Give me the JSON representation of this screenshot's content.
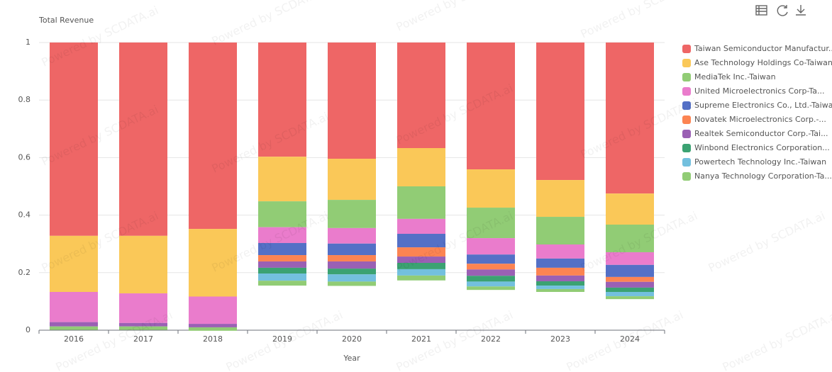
{
  "chart_data": {
    "type": "stacked_bar",
    "y_axis_label": "Total Revenue",
    "x_axis_label": "Year",
    "watermark": "Powered by SCDATA.ai",
    "categories": [
      "2016",
      "2017",
      "2018",
      "2019",
      "2020",
      "2021",
      "2022",
      "2023",
      "2024"
    ],
    "ylim": [
      0,
      1
    ],
    "yticks": [
      0,
      0.2,
      0.4,
      0.6,
      0.8,
      1
    ],
    "grid": true,
    "legend": "right",
    "series": [
      {
        "name": "Taiwan Semiconductor Manufactur...",
        "color": "#ee6666",
        "values": [
          0.672,
          0.672,
          0.648,
          0.397,
          0.404,
          0.367,
          0.441,
          0.478,
          0.525
        ]
      },
      {
        "name": "Ase Technology Holdings Co-Taiwan",
        "color": "#fac858",
        "values": [
          0.195,
          0.2,
          0.235,
          0.155,
          0.143,
          0.133,
          0.133,
          0.128,
          0.108
        ]
      },
      {
        "name": "MediaTek Inc.-Taiwan",
        "color": "#91cc75",
        "values": [
          0,
          0,
          0,
          0.09,
          0.098,
          0.113,
          0.106,
          0.096,
          0.096
        ]
      },
      {
        "name": "United Microelectronics Corp-Ta...",
        "color": "#ea7ccc",
        "values": [
          0.105,
          0.103,
          0.095,
          0.055,
          0.054,
          0.052,
          0.057,
          0.049,
          0.044
        ]
      },
      {
        "name": "Supreme Electronics Co., Ltd.-Taiwan",
        "color": "#5470c6",
        "values": [
          0,
          0,
          0,
          0.042,
          0.04,
          0.047,
          0.032,
          0.032,
          0.042
        ]
      },
      {
        "name": "Novatek Microelectronics Corp.-...",
        "color": "#fc8452",
        "values": [
          0,
          0,
          0,
          0.022,
          0.022,
          0.032,
          0.02,
          0.027,
          0.017
        ]
      },
      {
        "name": "Realtek Semiconductor Corp.-Tai...",
        "color": "#9a60b4",
        "values": [
          0.015,
          0.012,
          0.012,
          0.022,
          0.025,
          0.022,
          0.022,
          0.02,
          0.02
        ]
      },
      {
        "name": "Winbond Electronics Corporation...",
        "color": "#3ba272",
        "values": [
          0,
          0,
          0,
          0.02,
          0.02,
          0.022,
          0.02,
          0.015,
          0.015
        ]
      },
      {
        "name": "Powertech Technology Inc.-Taiwan",
        "color": "#73c0de",
        "values": [
          0,
          0,
          0,
          0.025,
          0.025,
          0.022,
          0.017,
          0.012,
          0.015
        ]
      },
      {
        "name": "Nanya Technology Corporation-Ta...",
        "color": "#91cc75",
        "values": [
          0.012,
          0.012,
          0.012,
          0.017,
          0.015,
          0.017,
          0.012,
          0.01,
          0.01
        ]
      }
    ]
  }
}
